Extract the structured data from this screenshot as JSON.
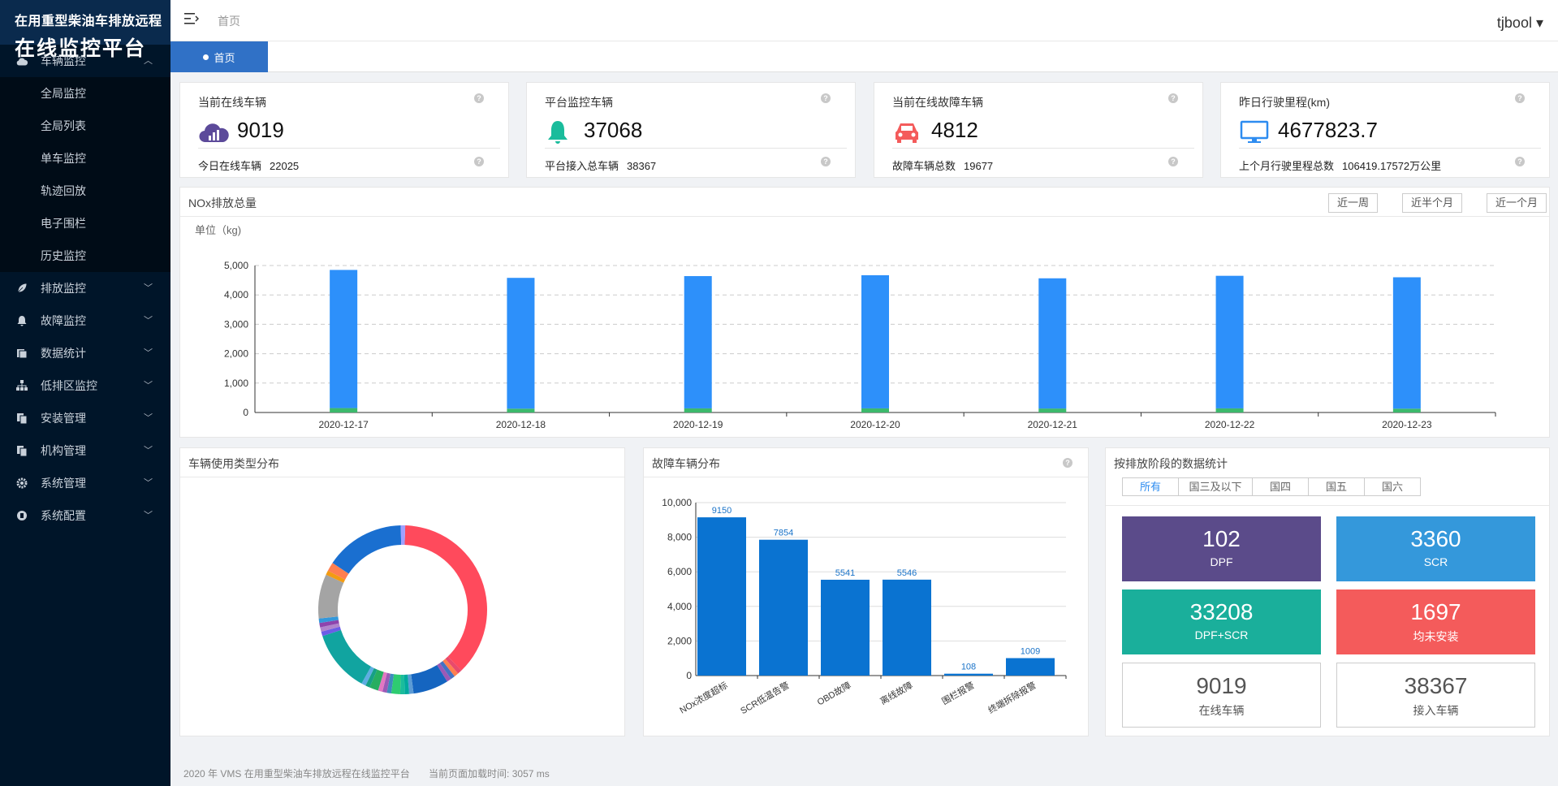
{
  "brand": {
    "line1": "在用重型柴油车排放远程",
    "line2": "在线监控平台"
  },
  "sidebar": {
    "group_vehicle": "车辆监控",
    "sub_items": [
      "全局监控",
      "全局列表",
      "单车监控",
      "轨迹回放",
      "电子围栏",
      "历史监控"
    ],
    "groups": [
      {
        "label": "排放监控",
        "icon": "leaf-icon"
      },
      {
        "label": "故障监控",
        "icon": "bell-icon"
      },
      {
        "label": "数据统计",
        "icon": "database-icon"
      },
      {
        "label": "低排区监控",
        "icon": "sitemap-icon"
      },
      {
        "label": "安装管理",
        "icon": "copy-icon"
      },
      {
        "label": "机构管理",
        "icon": "copy-icon"
      },
      {
        "label": "系统管理",
        "icon": "gear-icon"
      },
      {
        "label": "系统配置",
        "icon": "config-icon"
      }
    ]
  },
  "header": {
    "breadcrumb": "首页",
    "user": "tjbool ▾"
  },
  "tabs": {
    "home": "首页"
  },
  "stats": [
    {
      "title": "当前在线车辆",
      "value": "9019",
      "sub_label": "今日在线车辆",
      "sub_value": "22025",
      "icon": "cloud-signal-icon",
      "color": "#5c4a9a"
    },
    {
      "title": "平台监控车辆",
      "value": "37068",
      "sub_label": "平台接入总车辆",
      "sub_value": "38367",
      "icon": "bell-icon",
      "color": "#1abc9c"
    },
    {
      "title": "当前在线故障车辆",
      "value": "4812",
      "sub_label": "故障车辆总数",
      "sub_value": "19677",
      "icon": "car-icon",
      "color": "#f45b5b"
    },
    {
      "title": "昨日行驶里程(km)",
      "value": "4677823.7",
      "sub_label": "上个月行驶里程总数",
      "sub_value": "106419.17572万公里",
      "icon": "monitor-icon",
      "color": "#2d8cf0"
    }
  ],
  "nox": {
    "title": "NOx排放总量",
    "unit": "单位（kg)",
    "btn_week": "近一周",
    "btn_half": "近半个月",
    "btn_month": "近一个月"
  },
  "donut_title": "车辆使用类型分布",
  "fault_title": "故障车辆分布",
  "stage": {
    "title": "按排放阶段的数据统计",
    "tabs": [
      "所有",
      "国三及以下",
      "国四",
      "国五",
      "国六"
    ],
    "boxes": [
      {
        "value": "102",
        "label": "DPF",
        "color": "#5b4b8a"
      },
      {
        "value": "3360",
        "label": "SCR",
        "color": "#3498db"
      },
      {
        "value": "33208",
        "label": "DPF+SCR",
        "color": "#1aaf9b"
      },
      {
        "value": "1697",
        "label": "均未安装",
        "color": "#f45b5b"
      },
      {
        "value": "9019",
        "label": "在线车辆",
        "color": "#ffffff"
      },
      {
        "value": "38367",
        "label": "接入车辆",
        "color": "#ffffff"
      }
    ]
  },
  "footer": {
    "copyright": "2020 年 VMS 在用重型柴油车排放远程在线监控平台",
    "load_time": "当前页面加载时间: 3057 ms"
  },
  "chart_data": [
    {
      "type": "bar",
      "title": "NOx排放总量",
      "ylabel": "单位（kg)",
      "categories": [
        "2020-12-17",
        "2020-12-18",
        "2020-12-19",
        "2020-12-20",
        "2020-12-21",
        "2020-12-22",
        "2020-12-23"
      ],
      "series": [
        {
          "values": [
            150,
            130,
            140,
            140,
            135,
            140,
            130
          ],
          "color": "#3cb96c"
        },
        {
          "values": [
            4700,
            4450,
            4500,
            4530,
            4430,
            4510,
            4470
          ],
          "color": "#2d90fa"
        }
      ],
      "stacked": true,
      "ylim": [
        0,
        5000
      ],
      "yticks": [
        0,
        1000,
        2000,
        3000,
        4000,
        5000
      ],
      "grid": true
    },
    {
      "type": "pie",
      "title": "车辆使用类型分布",
      "donut": true,
      "values": [
        44,
        1,
        1,
        1,
        1,
        8,
        1,
        1,
        1,
        2,
        1,
        1,
        1,
        2,
        1,
        1,
        14,
        1,
        1,
        1,
        1,
        10,
        1,
        2,
        18,
        1
      ],
      "colors": [
        "#ff4a5c",
        "#e84a6c",
        "#ff7f50",
        "#4472c4",
        "#9b59b6",
        "#1565c0",
        "#5b9bd5",
        "#00a99d",
        "#1abc9c",
        "#2ecc71",
        "#3c8dbc",
        "#9b59b6",
        "#e377c2",
        "#27ae60",
        "#16a085",
        "#5dade2",
        "#11a4a0",
        "#6c5ce7",
        "#b084cc",
        "#8e44ad",
        "#3498db",
        "#a4a4a4",
        "#f39c12",
        "#ff7f50",
        "#1a6fd0",
        "#a0a0ff"
      ]
    },
    {
      "type": "bar",
      "title": "故障车辆分布",
      "categories": [
        "NOx浓度超标",
        "SCR低温告警",
        "OBD故障",
        "离线故障",
        "围栏报警",
        "终端拆除报警"
      ],
      "values": [
        9150,
        7854,
        5541,
        5546,
        108,
        1009
      ],
      "ylim": [
        0,
        10000
      ],
      "yticks": [
        0,
        2000,
        4000,
        6000,
        8000,
        10000
      ],
      "color": "#0a73d1"
    }
  ]
}
